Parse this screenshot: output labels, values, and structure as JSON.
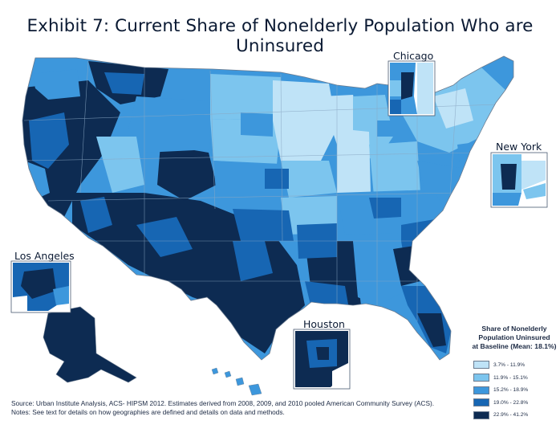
{
  "title": "Exhibit 7: Current Share of Nonelderly Population Who are Uninsured",
  "insets": {
    "chicago": "Chicago",
    "new_york": "New York",
    "los_angeles": "Los Angeles",
    "houston": "Houston"
  },
  "legend": {
    "title_line1": "Share of Nonelderly",
    "title_line2": "Population Uninsured",
    "title_line3": "at Baseline (Mean: 18.1%)",
    "mean_percent": 18.1,
    "items": [
      {
        "label": "3.7% - 11.9%",
        "color": "#bfe3f7",
        "min": 3.7,
        "max": 11.9
      },
      {
        "label": "11.9% - 15.1%",
        "color": "#7cc5ee",
        "min": 11.9,
        "max": 15.1
      },
      {
        "label": "15.2% - 18.9%",
        "color": "#3d97dc",
        "min": 15.2,
        "max": 18.9
      },
      {
        "label": "19.0% - 22.8%",
        "color": "#1766b3",
        "min": 19.0,
        "max": 22.8
      },
      {
        "label": "22.9% - 41.2%",
        "color": "#0d2b52",
        "min": 22.9,
        "max": 41.2
      }
    ]
  },
  "notes": {
    "source": "Source: Urban Institute Analysis, ACS- HIPSM 2012. Estimates derived from 2008, 2009, and 2010 pooled American Community Survey (ACS).",
    "note": "Notes: See text for details on how geographies are defined and details on data and methods."
  },
  "colors": {
    "border": "#6b7b8f",
    "background": "#ffffff"
  }
}
